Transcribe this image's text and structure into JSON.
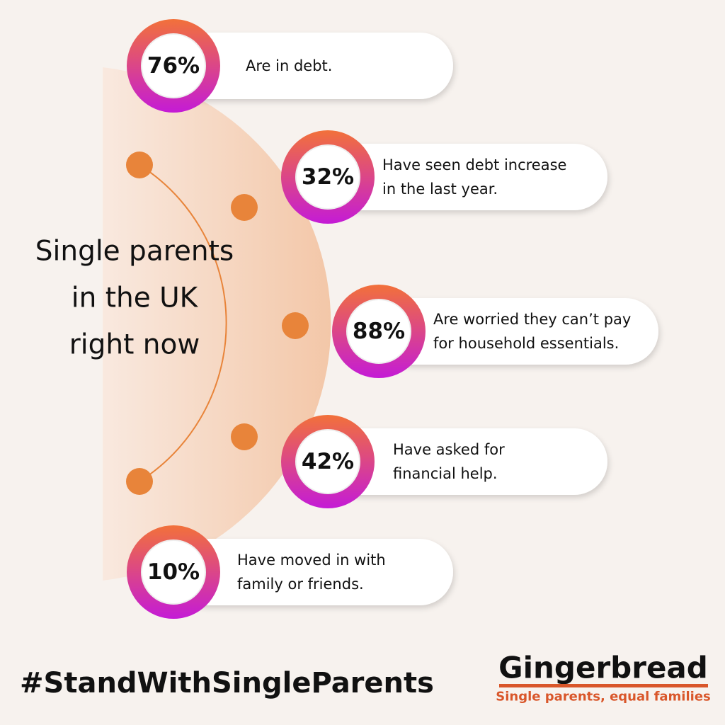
{
  "title": [
    "Single parents",
    "in the UK",
    "right now"
  ],
  "stats": [
    {
      "value": "76%",
      "lines": [
        "Are in debt."
      ]
    },
    {
      "value": "32%",
      "lines": [
        "Have seen debt increase",
        "in the last year."
      ]
    },
    {
      "value": "88%",
      "lines": [
        "Are worried they can’t pay",
        "for household essentials."
      ]
    },
    {
      "value": "42%",
      "lines": [
        "Have asked for",
        "financial help."
      ]
    },
    {
      "value": "10%",
      "lines": [
        "Have moved in with",
        "family or friends."
      ]
    }
  ],
  "hashtag": "#StandWithSingleParents",
  "logo": {
    "name": "Gingerbread",
    "tagline": "Single parents, equal families"
  }
}
